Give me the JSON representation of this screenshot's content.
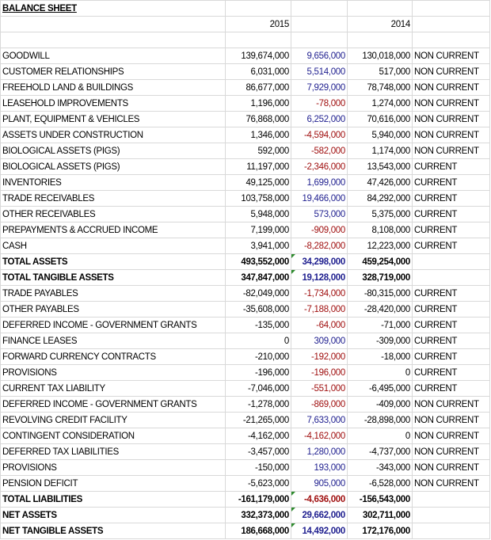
{
  "title": "BALANCE SHEET",
  "headers": [
    "2015",
    "2014"
  ],
  "rows": [
    {
      "cells": [
        "GOODWILL",
        "139,674,000",
        "9,656,000",
        "130,018,000",
        "NON CURRENT"
      ]
    },
    {
      "cells": [
        "CUSTOMER RELATIONSHIPS",
        "6,031,000",
        "5,514,000",
        "517,000",
        "NON CURRENT"
      ]
    },
    {
      "cells": [
        "FREEHOLD LAND & BUILDINGS",
        "86,677,000",
        "7,929,000",
        "78,748,000",
        "NON CURRENT"
      ]
    },
    {
      "cells": [
        "LEASEHOLD IMPROVEMENTS",
        "1,196,000",
        "-78,000",
        "1,274,000",
        "NON CURRENT"
      ]
    },
    {
      "cells": [
        "PLANT, EQUIPMENT & VEHICLES",
        "76,868,000",
        "6,252,000",
        "70,616,000",
        "NON CURRENT"
      ]
    },
    {
      "cells": [
        "ASSETS UNDER CONSTRUCTION",
        "1,346,000",
        "-4,594,000",
        "5,940,000",
        "NON CURRENT"
      ]
    },
    {
      "cells": [
        "BIOLOGICAL ASSETS (PIGS)",
        "592,000",
        "-582,000",
        "1,174,000",
        "NON CURRENT"
      ]
    },
    {
      "cells": [
        "BIOLOGICAL ASSETS (PIGS)",
        "11,197,000",
        "-2,346,000",
        "13,543,000",
        "CURRENT"
      ]
    },
    {
      "cells": [
        "INVENTORIES",
        "49,125,000",
        "1,699,000",
        "47,426,000",
        "CURRENT"
      ]
    },
    {
      "cells": [
        "TRADE RECEIVABLES",
        "103,758,000",
        "19,466,000",
        "84,292,000",
        "CURRENT"
      ]
    },
    {
      "cells": [
        "OTHER RECEIVABLES",
        "5,948,000",
        "573,000",
        "5,375,000",
        "CURRENT"
      ]
    },
    {
      "cells": [
        "PREPAYMENTS & ACCRUED INCOME",
        "7,199,000",
        "-909,000",
        "8,108,000",
        "CURRENT"
      ]
    },
    {
      "cells": [
        "CASH",
        "3,941,000",
        "-8,282,000",
        "12,223,000",
        "CURRENT"
      ]
    },
    {
      "cells": [
        "TOTAL ASSETS",
        "493,552,000",
        "34,298,000",
        "459,254,000"
      ],
      "bold": true
    },
    {
      "cells": [
        "TOTAL TANGIBLE ASSETS",
        "347,847,000",
        "19,128,000",
        "328,719,000"
      ],
      "bold": true
    },
    {
      "cells": [
        "TRADE PAYABLES",
        "-82,049,000",
        "-1,734,000",
        "-80,315,000",
        "CURRENT"
      ]
    },
    {
      "cells": [
        "OTHER PAYABLES",
        "-35,608,000",
        "-7,188,000",
        "-28,420,000",
        "CURRENT"
      ]
    },
    {
      "cells": [
        "DEFERRED INCOME - GOVERNMENT GRANTS",
        "-135,000",
        "-64,000",
        "-71,000",
        "CURRENT"
      ]
    },
    {
      "cells": [
        "FINANCE LEASES",
        "0",
        "309,000",
        "-309,000",
        "CURRENT"
      ]
    },
    {
      "cells": [
        "FORWARD CURRENCY CONTRACTS",
        "-210,000",
        "-192,000",
        "-18,000",
        "CURRENT"
      ]
    },
    {
      "cells": [
        "PROVISIONS",
        "-196,000",
        "-196,000",
        "0",
        "CURRENT"
      ]
    },
    {
      "cells": [
        "CURRENT TAX LIABILITY",
        "-7,046,000",
        "-551,000",
        "-6,495,000",
        "CURRENT"
      ]
    },
    {
      "cells": [
        "DEFERRED INCOME - GOVERNMENT GRANTS",
        "-1,278,000",
        "-869,000",
        "-409,000",
        "NON CURRENT"
      ]
    },
    {
      "cells": [
        "REVOLVING CREDIT FACILITY",
        "-21,265,000",
        "7,633,000",
        "-28,898,000",
        "NON CURRENT"
      ]
    },
    {
      "cells": [
        "CONTINGENT CONSIDERATION",
        "-4,162,000",
        "-4,162,000",
        "0",
        "NON CURRENT"
      ]
    },
    {
      "cells": [
        "DEFERRED TAX LIABILITIES",
        "-3,457,000",
        "1,280,000",
        "-4,737,000",
        "NON CURRENT"
      ]
    },
    {
      "cells": [
        "PROVISIONS",
        "-150,000",
        "193,000",
        "-343,000",
        "NON CURRENT"
      ]
    },
    {
      "cells": [
        "PENSION DEFICIT",
        "-5,623,000",
        "905,000",
        "-6,528,000",
        "NON CURRENT"
      ]
    },
    {
      "cells": [
        "TOTAL LIABILITIES",
        "-161,179,000",
        "-4,636,000",
        "-156,543,000"
      ],
      "bold": true
    },
    {
      "cells": [
        "NET ASSETS",
        "332,373,000",
        "29,662,000",
        "302,711,000"
      ],
      "bold": true
    },
    {
      "cells": [
        "NET TANGIBLE ASSETS",
        "186,668,000",
        "14,492,000",
        "172,176,000"
      ],
      "bold": true
    }
  ]
}
